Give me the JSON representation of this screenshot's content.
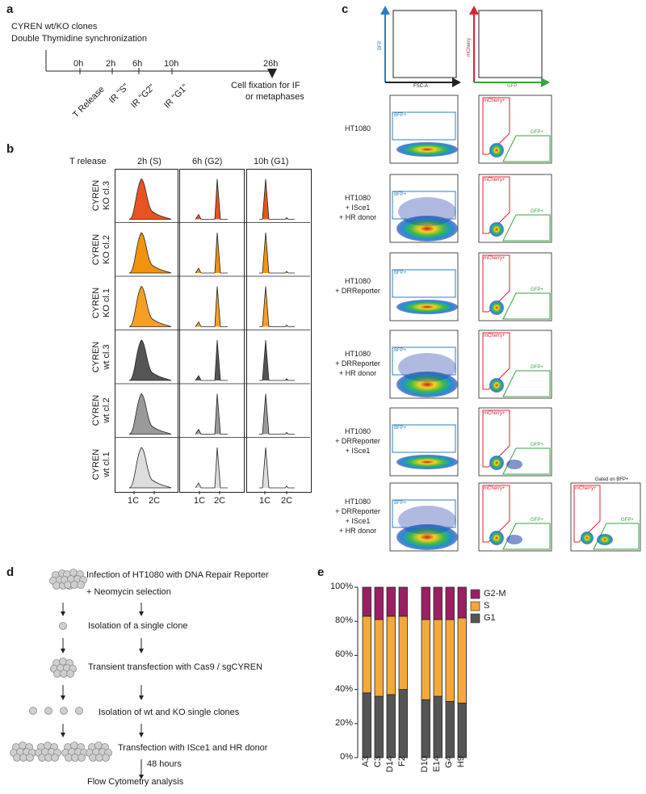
{
  "panels": {
    "a": "a",
    "b": "b",
    "c": "c",
    "d": "d",
    "e": "e"
  },
  "panel_a": {
    "title1": "CYREN wt/KO clones",
    "title2": "Double Thymidine synchronization",
    "ticks": [
      "0h",
      "2h",
      "6h",
      "10h",
      "26h"
    ],
    "events": [
      "T Release",
      "IR \"S\"",
      "IR \"G2\"",
      "IR \"G1\""
    ],
    "end_label1": "Cell fixation for IF",
    "end_label2": "or metaphases"
  },
  "panel_b": {
    "header": "T release",
    "columns": [
      "2h (S)",
      "6h (G2)",
      "10h (G1)"
    ],
    "rows": [
      {
        "line1": "CYREN",
        "line2": "KO cl.3",
        "color": "#e85420"
      },
      {
        "line1": "CYREN",
        "line2": "KO cl.2",
        "color": "#f0940e"
      },
      {
        "line1": "CYREN",
        "line2": "KO cl.1",
        "color": "#f5a024"
      },
      {
        "line1": "CYREN",
        "line2": "wt cl.3",
        "color": "#555555"
      },
      {
        "line1": "CYREN",
        "line2": "wt cl.2",
        "color": "#9a9a9a"
      },
      {
        "line1": "CYREN",
        "line2": "wt cl.1",
        "color": "#dddddd"
      }
    ],
    "x_ticks": [
      "1C",
      "2C"
    ]
  },
  "panel_c": {
    "axes": {
      "bfp": "BFP",
      "fsc": "FSC-A",
      "mcherry": "mCherry",
      "gfp": "GFP"
    },
    "gates": {
      "bfp": "BFP+",
      "mcherry": "mCherry+",
      "gfp": "GFP+"
    },
    "gated_label": "Gated on BFP+",
    "colors": {
      "bfp": "#2a7fc0",
      "mcherry": "#e02030",
      "gfp": "#3aa040"
    },
    "rows": [
      [
        "HT1080"
      ],
      [
        "HT1080",
        "+ ISce1",
        "+ HR donor"
      ],
      [
        "HT1080",
        "+ DRReporter"
      ],
      [
        "HT1080",
        "+ DRReporter",
        "+ HR donor"
      ],
      [
        "HT1080",
        "+ DRReporter",
        "+ ISce1"
      ],
      [
        "HT1080",
        "+ DRReporter",
        "+ ISce1",
        "+ HR donor"
      ]
    ]
  },
  "panel_d": {
    "steps": [
      "Infection of HT1080 with DNA Repair Reporter",
      "+ Neomycin selection",
      "Isolation of a single clone",
      "Transient transfection with Cas9 / sgCYREN",
      "Isolation of wt and KO single clones",
      "Transfection with ISce1 and HR donor",
      "48 hours",
      "Flow Cytometry analysis"
    ]
  },
  "chart_data": {
    "type": "bar",
    "stacked": true,
    "categories": [
      "A3",
      "C3",
      "D14",
      "F2",
      "D10",
      "E14",
      "G4",
      "H9"
    ],
    "series": [
      {
        "name": "G1",
        "color": "#555555",
        "values": [
          38,
          36,
          37,
          40,
          34,
          36,
          33,
          32
        ]
      },
      {
        "name": "S",
        "color": "#f5a93a",
        "values": [
          45,
          45,
          46,
          43,
          47,
          45,
          48,
          50
        ]
      },
      {
        "name": "G2-M",
        "color": "#9c1f63",
        "values": [
          17,
          19,
          17,
          17,
          19,
          19,
          19,
          18
        ]
      }
    ],
    "legend": [
      "G2-M",
      "S",
      "G1"
    ],
    "yticks": [
      "0%",
      "20%",
      "40%",
      "60%",
      "80%",
      "100%"
    ],
    "ylim": [
      0,
      100
    ]
  }
}
